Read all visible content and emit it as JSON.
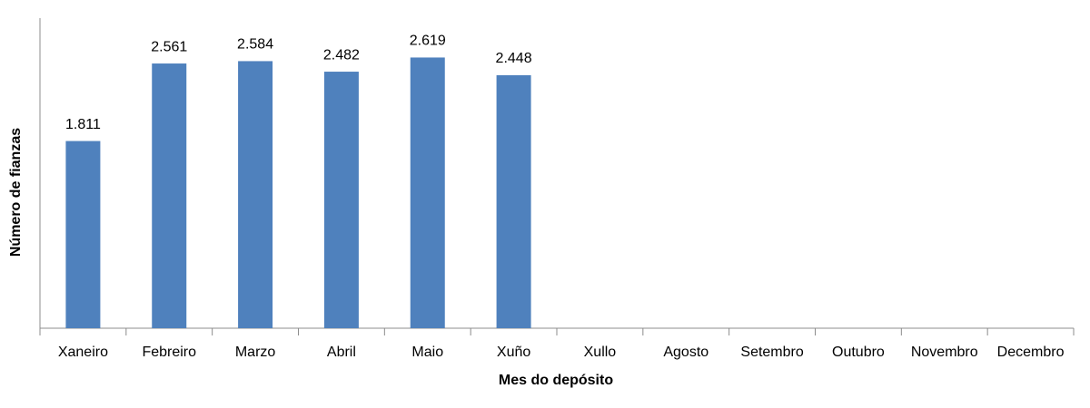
{
  "chart_data": {
    "type": "bar",
    "x_label": "Mes do depósito",
    "y_label": "Número de fianzas",
    "categories": [
      "Xaneiro",
      "Febreiro",
      "Marzo",
      "Abril",
      "Maio",
      "Xuño",
      "Xullo",
      "Agosto",
      "Setembro",
      "Outubro",
      "Novembro",
      "Decembro"
    ],
    "values": [
      1811,
      2561,
      2584,
      2482,
      2619,
      2448,
      null,
      null,
      null,
      null,
      null,
      null
    ],
    "value_labels": [
      "1.811",
      "2.561",
      "2.584",
      "2.482",
      "2.619",
      "2.448",
      null,
      null,
      null,
      null,
      null,
      null
    ],
    "color": "#4f81bd",
    "ylim": [
      0,
      3000
    ]
  }
}
